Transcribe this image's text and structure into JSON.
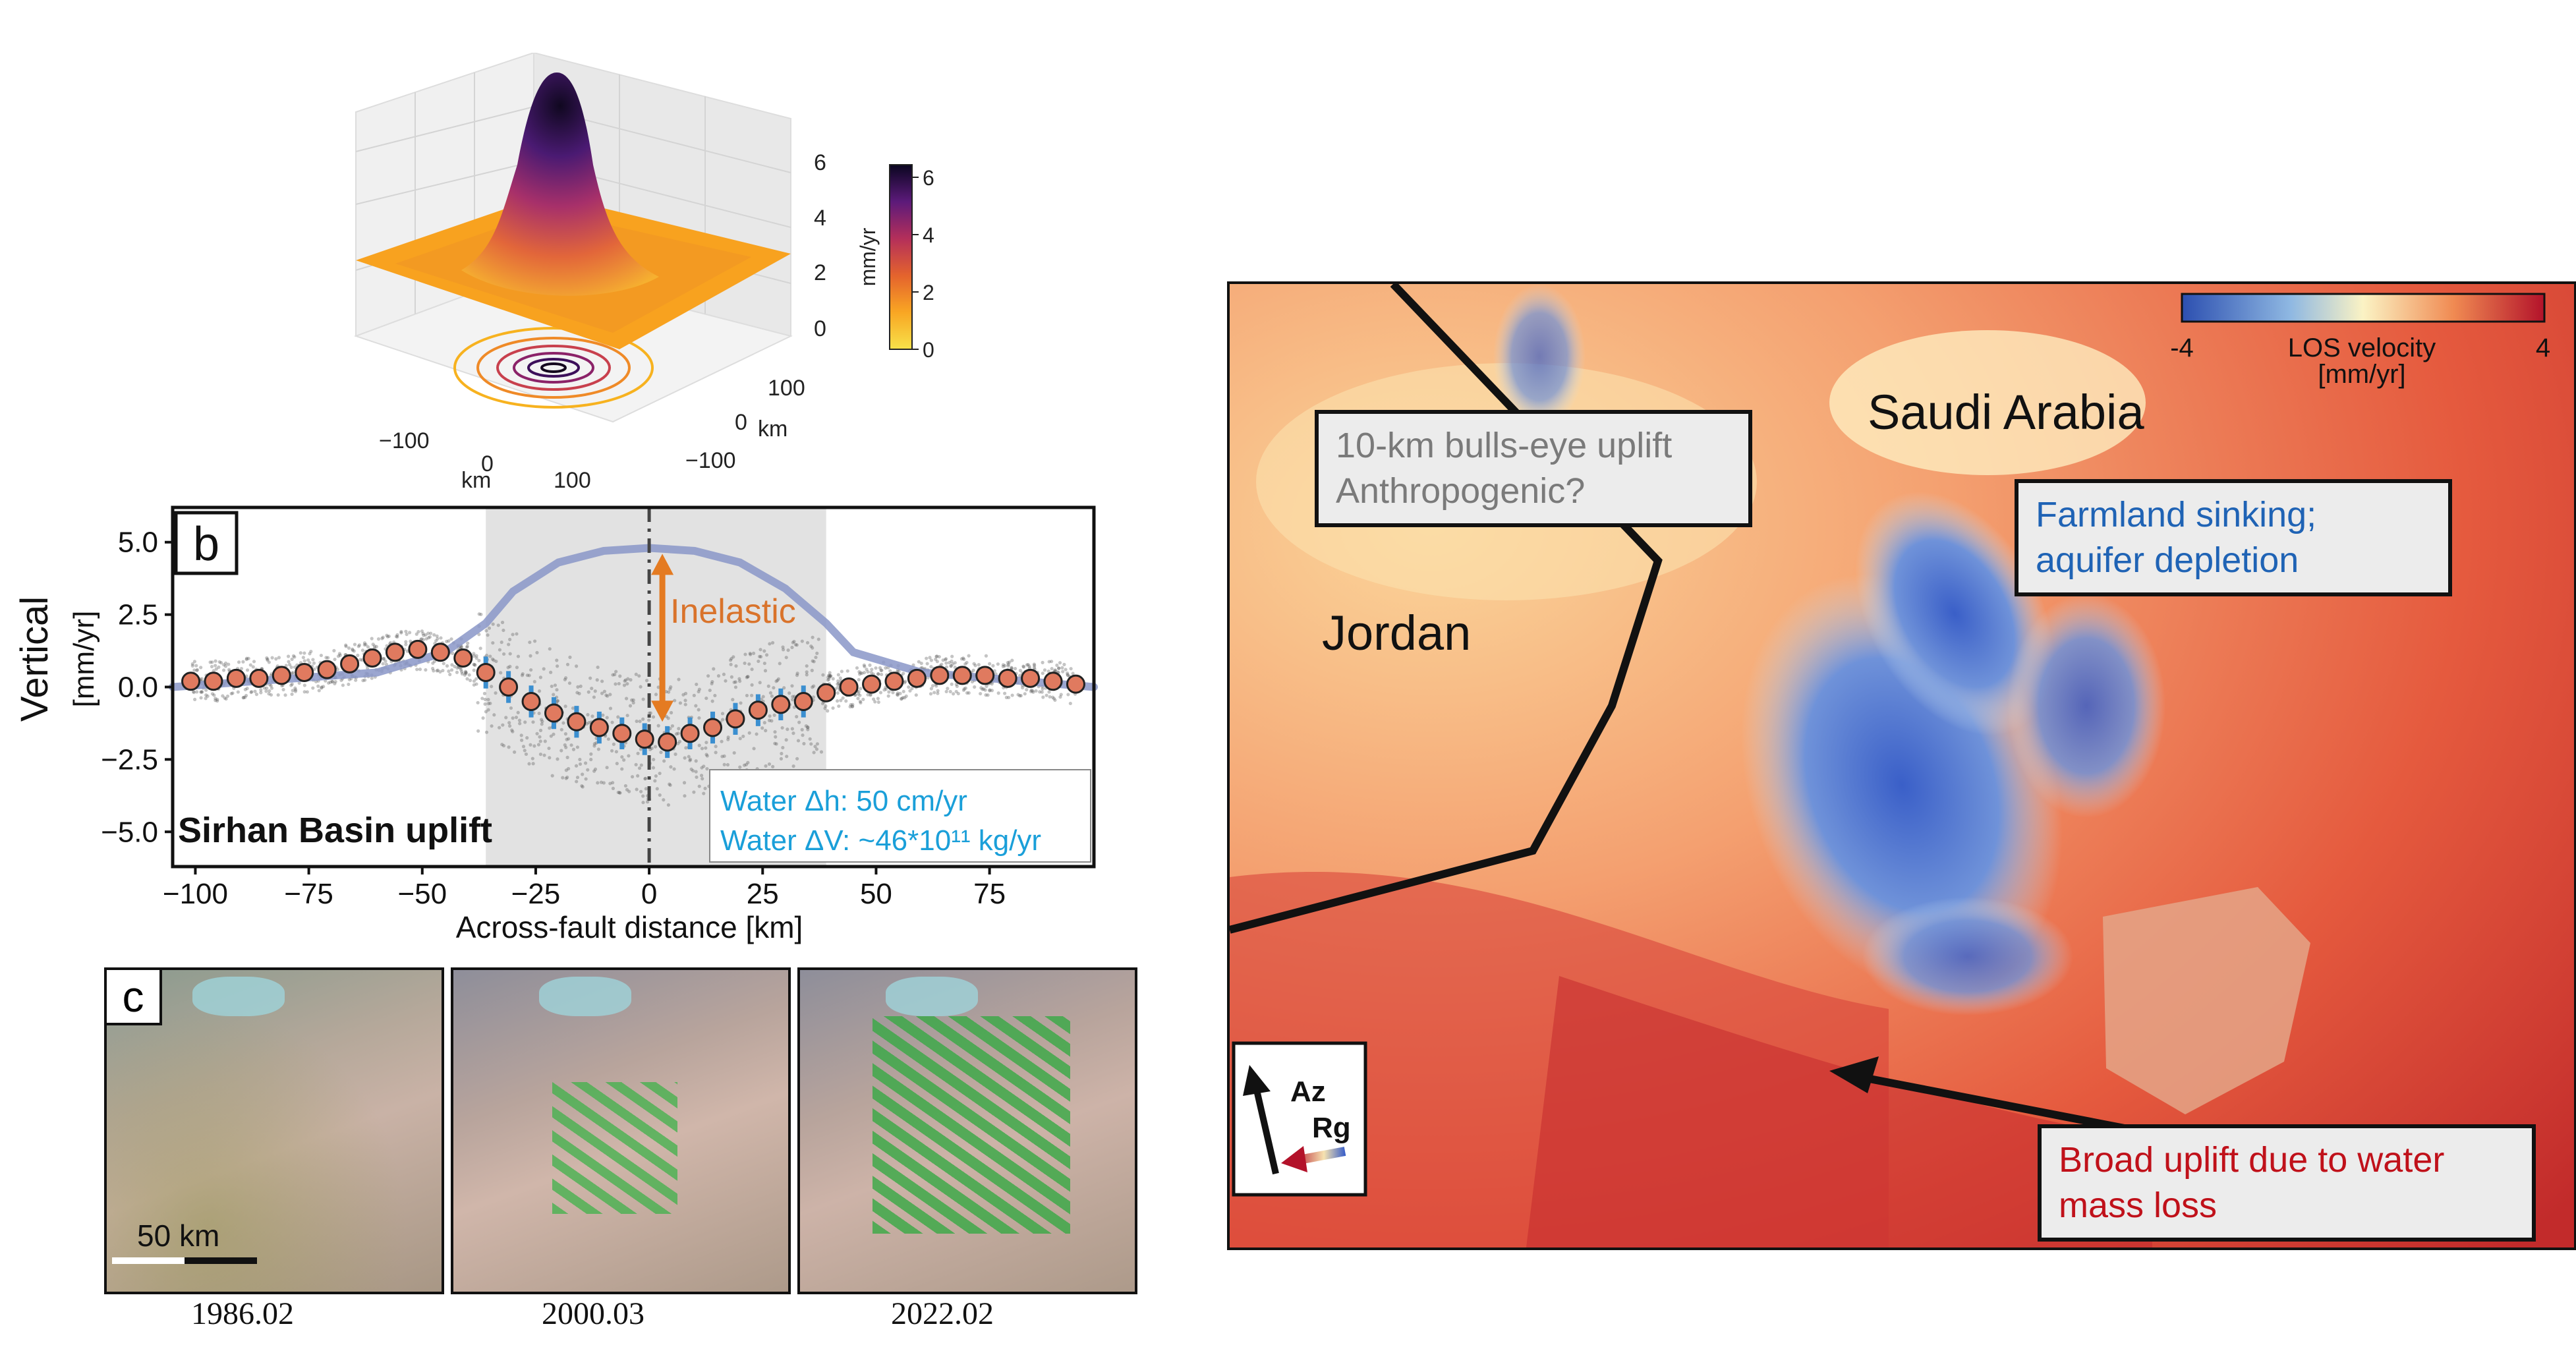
{
  "panel_a": {
    "colorbar_label": "mm/yr",
    "colorbar_ticks": [
      "0",
      "2",
      "4",
      "6"
    ],
    "z_ticks": [
      "0",
      "2",
      "4",
      "6"
    ],
    "x_ticks": [
      "−100",
      "0",
      "100"
    ],
    "x_unit": "km",
    "y_ticks": [
      "100",
      "0",
      "−100"
    ],
    "y_unit": "km"
  },
  "panel_b": {
    "letter": "b",
    "inelastic_label": "Inelastic",
    "basin_label": "Sirhan Basin uplift",
    "water_dh": "Water Δh:  50 cm/yr",
    "water_dv": "Water ΔV:  ~46*10¹¹ kg/yr",
    "colors": {
      "points": "#e07a5f",
      "errorbars": "#3b8fd0",
      "model": "#8a96c8",
      "arrow": "#e47b22",
      "legend_text": "#1a9fd9"
    }
  },
  "chart_data": {
    "type": "scatter",
    "title": "",
    "xlabel": "Across-fault distance [km]",
    "ylabel": "Vertical [mm/yr]",
    "xlim": [
      -105,
      98
    ],
    "ylim": [
      -6.2,
      6.2
    ],
    "x_ticks": [
      "−100",
      "−75",
      "−50",
      "−25",
      "0",
      "25",
      "50",
      "75"
    ],
    "y_ticks": [
      "5.0",
      "2.5",
      "0.0",
      "−2.5",
      "−5.0"
    ],
    "shaded_region": [
      -36,
      39
    ],
    "fault_position": 0,
    "series": [
      {
        "kind": "binned_mean",
        "x": [
          -101,
          -96,
          -91,
          -86,
          -81,
          -76,
          -71,
          -66,
          -61,
          -56,
          -51,
          -46,
          -41,
          -36,
          -31,
          -26,
          -21,
          -16,
          -11,
          -6,
          -1,
          4,
          9,
          14,
          19,
          24,
          29,
          34,
          39,
          44,
          49,
          54,
          59,
          64,
          69,
          74,
          79,
          84,
          89,
          94
        ],
        "y": [
          0.2,
          0.2,
          0.3,
          0.3,
          0.4,
          0.5,
          0.6,
          0.8,
          1.0,
          1.2,
          1.3,
          1.2,
          1.0,
          0.5,
          0.0,
          -0.5,
          -0.9,
          -1.2,
          -1.4,
          -1.6,
          -1.8,
          -1.9,
          -1.6,
          -1.4,
          -1.1,
          -0.8,
          -0.6,
          -0.5,
          -0.2,
          0.0,
          0.1,
          0.2,
          0.3,
          0.4,
          0.4,
          0.4,
          0.3,
          0.3,
          0.2,
          0.1
        ]
      },
      {
        "kind": "model_curve",
        "x": [
          -105,
          -60,
          -45,
          -36,
          -30,
          -20,
          -10,
          0,
          10,
          20,
          30,
          39,
          45,
          60,
          98
        ],
        "y": [
          0.0,
          0.5,
          1.2,
          2.2,
          3.3,
          4.3,
          4.7,
          4.8,
          4.7,
          4.3,
          3.4,
          2.2,
          1.2,
          0.5,
          0.0
        ]
      }
    ]
  },
  "panel_c": {
    "letter": "c",
    "scale_label": "50 km",
    "dates": [
      "1986.02",
      "2000.03",
      "2022.02"
    ]
  },
  "map": {
    "colorbar_min": "-4",
    "colorbar_max": "4",
    "colorbar_title": "LOS velocity",
    "colorbar_unit": "[mm/yr]",
    "country_jordan": "Jordan",
    "country_saudi": "Saudi Arabia",
    "callout_uplift_line1": "10-km bulls-eye uplift",
    "callout_uplift_line2": "Anthropogenic?",
    "callout_farm_line1": "Farmland sinking;",
    "callout_farm_line2": "aquifer depletion",
    "callout_broad_line1": "Broad uplift due to water",
    "callout_broad_line2": "mass loss",
    "az_label": "Az",
    "rg_label": "Rg",
    "colors": {
      "callout_uplift_text": "#7a7a7a",
      "callout_farm_text": "#1f63b5",
      "callout_broad_text": "#c0111a",
      "callout_bg": "#ececec"
    }
  }
}
